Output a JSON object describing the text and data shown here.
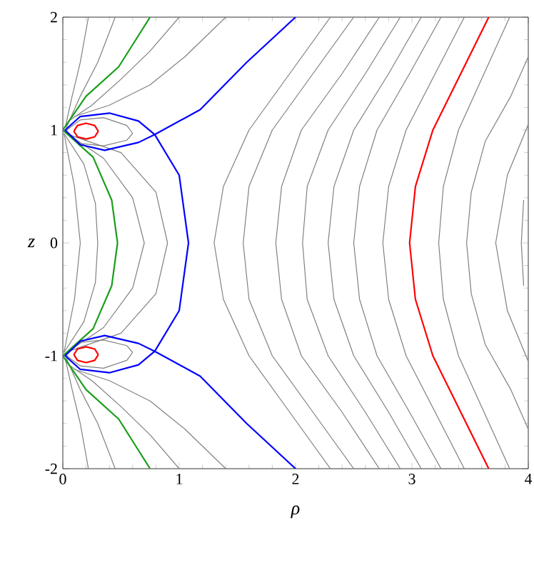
{
  "chart_data": {
    "type": "line",
    "xlabel": "ρ",
    "ylabel": "z",
    "xlim": [
      0,
      4
    ],
    "ylim": [
      -2,
      2
    ],
    "xticks": [
      0,
      1,
      2,
      3,
      4
    ],
    "yticks": [
      -2,
      -1,
      0,
      1,
      2
    ],
    "grid": false,
    "marker": "none",
    "line_style": "solid",
    "series": [
      {
        "color": "#808080",
        "x": [
          2.3,
          1.95,
          1.6,
          1.38,
          1.3,
          1.38,
          1.6,
          1.95,
          2.3
        ],
        "values": [
          2,
          1.5,
          1,
          0.5,
          0,
          -0.5,
          -1,
          -1.5,
          -2
        ]
      },
      {
        "color": "#808080",
        "x": [
          2.5,
          2.15,
          1.8,
          1.6,
          1.55,
          1.6,
          1.8,
          2.15,
          2.5
        ],
        "values": [
          2,
          1.5,
          1,
          0.5,
          0,
          -0.5,
          -1,
          -1.5,
          -2
        ]
      },
      {
        "color": "#808080",
        "x": [
          2.72,
          2.4,
          2.05,
          1.88,
          1.83,
          1.88,
          2.05,
          2.4,
          2.72
        ],
        "values": [
          2,
          1.5,
          1,
          0.5,
          0,
          -0.5,
          -1,
          -1.5,
          -2
        ]
      },
      {
        "color": "#808080",
        "x": [
          2.9,
          2.6,
          2.28,
          2.1,
          2.06,
          2.1,
          2.28,
          2.6,
          2.9
        ],
        "values": [
          2,
          1.5,
          1,
          0.5,
          0,
          -0.5,
          -1,
          -1.5,
          -2
        ]
      },
      {
        "color": "#808080",
        "x": [
          3.08,
          2.8,
          2.5,
          2.33,
          2.28,
          2.33,
          2.5,
          2.8,
          3.08
        ],
        "values": [
          2,
          1.5,
          1,
          0.5,
          0,
          -0.5,
          -1,
          -1.5,
          -2
        ]
      },
      {
        "color": "#808080",
        "x": [
          3.25,
          2.98,
          2.7,
          2.55,
          2.5,
          2.55,
          2.7,
          2.98,
          3.25
        ],
        "values": [
          2,
          1.5,
          1,
          0.5,
          0,
          -0.5,
          -1,
          -1.5,
          -2
        ]
      },
      {
        "color": "#808080",
        "x": [
          3.45,
          3.2,
          2.95,
          2.8,
          2.75,
          2.8,
          2.95,
          3.2,
          3.45
        ],
        "values": [
          2,
          1.5,
          1,
          0.5,
          0,
          -0.5,
          -1,
          -1.5,
          -2
        ]
      },
      {
        "color": "#808080",
        "x": [
          3.84,
          3.62,
          3.4,
          3.27,
          3.23,
          3.27,
          3.4,
          3.62,
          3.84
        ],
        "values": [
          2,
          1.5,
          1,
          0.5,
          0,
          -0.5,
          -1,
          -1.5,
          -2
        ]
      },
      {
        "color": "#808080",
        "x": [
          4.0,
          3.85,
          3.63,
          3.51,
          3.47,
          3.51,
          3.63,
          3.85,
          4.0
        ],
        "values": [
          1.65,
          1.3,
          0.9,
          0.45,
          0,
          -0.45,
          -0.9,
          -1.3,
          -1.65
        ]
      },
      {
        "color": "#808080",
        "x": [
          4.0,
          3.82,
          3.72,
          3.82,
          4.0
        ],
        "values": [
          1.05,
          0.6,
          0,
          -0.6,
          -1.05
        ]
      },
      {
        "color": "#808080",
        "x": [
          3.96,
          3.94,
          3.96
        ],
        "values": [
          0.38,
          0,
          -0.38
        ]
      },
      {
        "color": "#808080",
        "x": [
          0.02,
          0.08,
          0.15,
          0.22
        ],
        "values": [
          1.02,
          1.3,
          1.6,
          2
        ]
      },
      {
        "color": "#808080",
        "x": [
          0.02,
          0.08,
          0.15,
          0.22
        ],
        "values": [
          -1.02,
          -1.3,
          -1.6,
          -2
        ]
      },
      {
        "color": "#808080",
        "x": [
          0.03,
          0.15,
          0.3,
          0.45
        ],
        "values": [
          1.02,
          1.3,
          1.6,
          2
        ]
      },
      {
        "color": "#808080",
        "x": [
          0.03,
          0.15,
          0.3,
          0.45
        ],
        "values": [
          -1.02,
          -1.3,
          -1.6,
          -2
        ]
      },
      {
        "color": "#808080",
        "x": [
          0.05,
          0.25,
          0.5,
          0.75,
          1.0
        ],
        "values": [
          1.08,
          1.22,
          1.45,
          1.7,
          2
        ]
      },
      {
        "color": "#808080",
        "x": [
          0.05,
          0.25,
          0.5,
          0.75,
          1.0
        ],
        "values": [
          -1.08,
          -1.22,
          -1.45,
          -1.7,
          -2
        ]
      },
      {
        "color": "#808080",
        "x": [
          0.1,
          0.4,
          0.75,
          1.05,
          1.4
        ],
        "values": [
          1.12,
          1.22,
          1.4,
          1.65,
          2
        ]
      },
      {
        "color": "#808080",
        "x": [
          0.1,
          0.4,
          0.75,
          1.05,
          1.4
        ],
        "values": [
          -1.12,
          -1.22,
          -1.4,
          -1.65,
          -2
        ]
      },
      {
        "color": "#808080",
        "x": [
          0.01,
          0.1,
          0.15,
          0.1,
          0.01
        ],
        "values": [
          0.97,
          0.5,
          0,
          -0.5,
          -0.97
        ]
      },
      {
        "color": "#808080",
        "x": [
          0.01,
          0.18,
          0.28,
          0.3,
          0.28,
          0.18,
          0.01
        ],
        "values": [
          0.97,
          0.7,
          0.35,
          0,
          -0.35,
          -0.7,
          -0.97
        ]
      },
      {
        "color": "#808080",
        "x": [
          0.02,
          0.35,
          0.6,
          0.7,
          0.6,
          0.35,
          0.02
        ],
        "values": [
          0.98,
          0.75,
          0.4,
          0,
          -0.4,
          -0.75,
          -0.98
        ]
      },
      {
        "color": "#808080",
        "x": [
          0.05,
          0.5,
          0.8,
          0.9,
          0.8,
          0.5,
          0.05
        ],
        "values": [
          0.96,
          0.8,
          0.45,
          0,
          -0.45,
          -0.8,
          -0.96
        ]
      },
      {
        "color": "#808080",
        "x": [
          0.02,
          0.15,
          0.35,
          0.55,
          0.6
        ],
        "values": [
          0.99,
          1.09,
          1.11,
          1.04,
          0.97
        ]
      },
      {
        "color": "#808080",
        "x": [
          0.02,
          0.15,
          0.35,
          0.55,
          0.6
        ],
        "values": [
          0.99,
          0.88,
          0.86,
          0.91,
          0.97
        ]
      },
      {
        "color": "#808080",
        "x": [
          0.02,
          0.15,
          0.35,
          0.55,
          0.6
        ],
        "values": [
          -0.99,
          -1.09,
          -1.11,
          -1.04,
          -0.97
        ]
      },
      {
        "color": "#808080",
        "x": [
          0.02,
          0.15,
          0.35,
          0.55,
          0.6
        ],
        "values": [
          -0.99,
          -0.88,
          -0.86,
          -0.91,
          -0.97
        ]
      },
      {
        "color": "#ff0000",
        "x": [
          3.66,
          3.42,
          3.18,
          3.03,
          2.98,
          3.03,
          3.18,
          3.42,
          3.66
        ],
        "values": [
          2,
          1.5,
          1,
          0.5,
          0,
          -0.5,
          -1,
          -1.5,
          -2
        ]
      },
      {
        "color": "#1a9e1a",
        "x": [
          0.75,
          0.48,
          0.2,
          0,
          0.26,
          0.42,
          0.47,
          0.42,
          0.26,
          0,
          0.2,
          0.48,
          0.75
        ],
        "values": [
          2,
          1.56,
          1.3,
          1,
          0.76,
          0.38,
          0,
          -0.38,
          -0.76,
          -1,
          -1.3,
          -1.56,
          -2
        ]
      },
      {
        "color": "#0000ff",
        "x": [
          2,
          1.58,
          1.18,
          0.79,
          0.65,
          0.4,
          0.15,
          0.02,
          0.15,
          0.36,
          0.65,
          0.79,
          1.0,
          1.08,
          1.0,
          0.79,
          0.65,
          0.36,
          0.15,
          0.02,
          0.15,
          0.4,
          0.65,
          0.79,
          1.18,
          1.58,
          2
        ],
        "values": [
          2,
          1.6,
          1.18,
          0.96,
          1.08,
          1.15,
          1.12,
          1.0,
          0.87,
          0.82,
          0.89,
          0.96,
          0.6,
          0,
          -0.6,
          -0.96,
          -0.89,
          -0.82,
          -0.87,
          -1.0,
          -1.12,
          -1.15,
          -1.08,
          -0.96,
          -1.18,
          -1.6,
          -2
        ]
      },
      {
        "color": "#ff0000",
        "x": [
          0.095,
          0.126,
          0.2,
          0.274,
          0.305
        ],
        "values": [
          0.99,
          1.04,
          1.06,
          1.04,
          0.99
        ]
      },
      {
        "color": "#ff0000",
        "x": [
          0.095,
          0.126,
          0.2,
          0.274,
          0.305
        ],
        "values": [
          0.99,
          0.94,
          0.92,
          0.94,
          0.99
        ]
      },
      {
        "color": "#ff0000",
        "x": [
          0.095,
          0.126,
          0.2,
          0.274,
          0.305
        ],
        "values": [
          -0.99,
          -1.04,
          -1.06,
          -1.04,
          -0.99
        ]
      },
      {
        "color": "#ff0000",
        "x": [
          0.095,
          0.126,
          0.2,
          0.274,
          0.305
        ],
        "values": [
          -0.99,
          -0.94,
          -0.92,
          -0.94,
          -0.99
        ]
      }
    ]
  }
}
